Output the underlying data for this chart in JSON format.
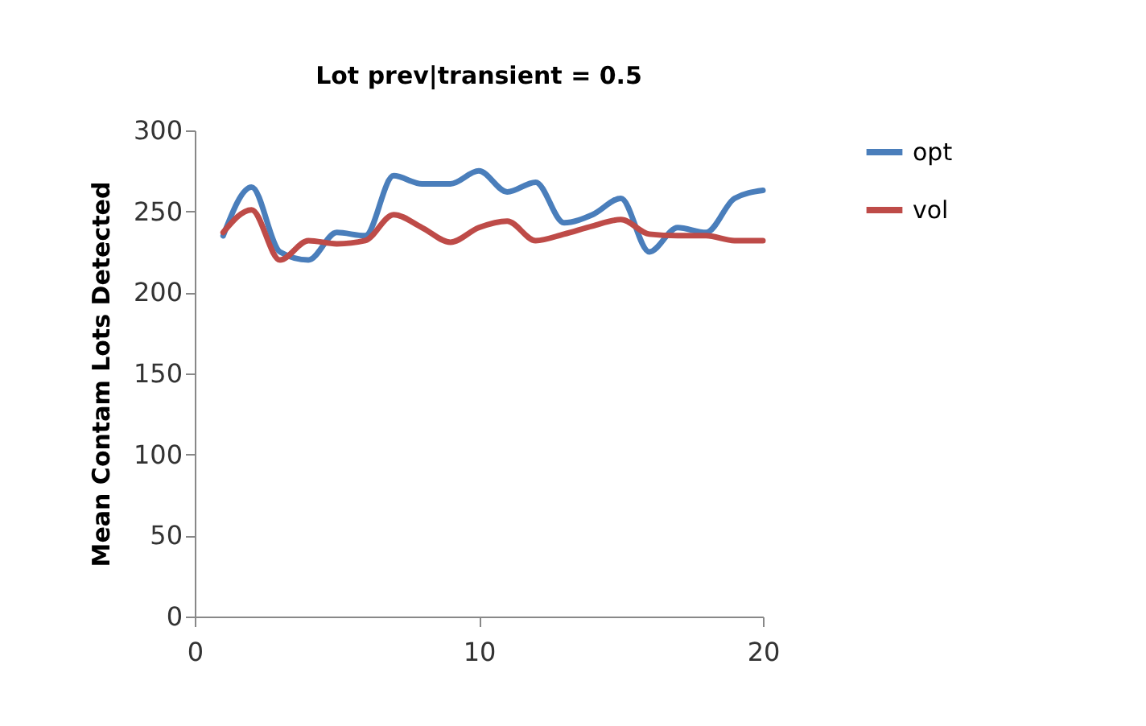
{
  "chart_data": {
    "type": "line",
    "title": "Lot prev|transient = 0.5",
    "ylabel": "Mean Contam Lots Detected",
    "x": [
      1,
      2,
      3,
      4,
      5,
      6,
      7,
      8,
      9,
      10,
      11,
      12,
      13,
      14,
      15,
      16,
      17,
      18,
      19,
      20
    ],
    "series": [
      {
        "name": "opt",
        "color": "#4a7ebb",
        "values": [
          235,
          265,
          225,
          220,
          237,
          235,
          272,
          267,
          267,
          275,
          262,
          268,
          243,
          248,
          258,
          225,
          240,
          237,
          258,
          263
        ]
      },
      {
        "name": "vol",
        "color": "#be4b48",
        "values": [
          237,
          251,
          220,
          232,
          230,
          232,
          248,
          240,
          231,
          240,
          244,
          232,
          236,
          241,
          245,
          236,
          235,
          235,
          232,
          232
        ]
      }
    ],
    "xlim": [
      0,
      20
    ],
    "xticks": [
      0,
      10,
      20
    ],
    "ylim": [
      0,
      300
    ],
    "yticks": [
      0,
      50,
      100,
      150,
      200,
      250,
      300
    ],
    "grid": false,
    "legend": "right",
    "marker": "none",
    "line_style": "solid"
  }
}
